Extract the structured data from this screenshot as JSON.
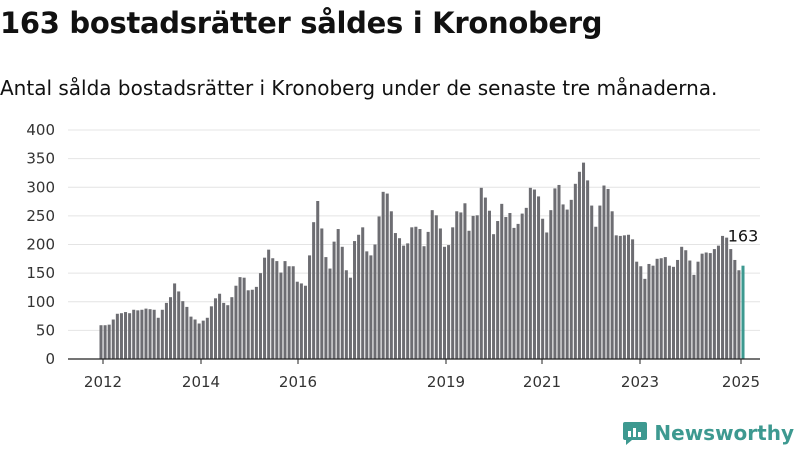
{
  "header": {
    "title": "163 bostadsrätter såldes i Kronoberg",
    "subtitle": "Antal sålda bostadsrätter i Kronoberg under de senaste tre månaderna."
  },
  "brand": {
    "name": "Newsworthy",
    "icon": "newsworthy-logo-icon",
    "color": "#3d9990"
  },
  "chart_data": {
    "type": "bar",
    "title": "163 bostadsrätter såldes i Kronoberg",
    "subtitle": "Antal sålda bostadsrätter i Kronoberg under de senaste tre månaderna.",
    "xlabel": "",
    "ylabel": "",
    "ylim": [
      0,
      400
    ],
    "yticks": [
      0,
      50,
      100,
      150,
      200,
      250,
      300,
      350,
      400
    ],
    "x_tick_labels": [
      "2012",
      "2014",
      "2016",
      "2019",
      "2021",
      "2023",
      "2025"
    ],
    "grid": true,
    "bar_color": "#6d6d72",
    "highlight_color": "#3d9990",
    "last_label": "163",
    "values": [
      59,
      59,
      60,
      69,
      79,
      80,
      82,
      80,
      86,
      85,
      86,
      88,
      87,
      86,
      72,
      86,
      98,
      108,
      132,
      118,
      101,
      91,
      74,
      69,
      62,
      67,
      72,
      92,
      106,
      114,
      98,
      94,
      108,
      128,
      143,
      142,
      120,
      121,
      126,
      150,
      177,
      191,
      176,
      171,
      151,
      171,
      162,
      162,
      135,
      132,
      128,
      181,
      239,
      276,
      228,
      178,
      158,
      205,
      227,
      196,
      155,
      142,
      206,
      217,
      230,
      188,
      181,
      200,
      249,
      292,
      289,
      258,
      220,
      211,
      198,
      202,
      230,
      231,
      227,
      197,
      222,
      260,
      251,
      228,
      196,
      199,
      230,
      258,
      256,
      272,
      224,
      250,
      251,
      299,
      282,
      259,
      218,
      241,
      271,
      248,
      255,
      229,
      236,
      254,
      264,
      299,
      296,
      284,
      245,
      221,
      260,
      298,
      304,
      270,
      261,
      278,
      306,
      327,
      343,
      312,
      268,
      231,
      268,
      303,
      297,
      258,
      216,
      215,
      216,
      217,
      209,
      170,
      162,
      140,
      166,
      163,
      175,
      176,
      178,
      163,
      161,
      173,
      196,
      190,
      172,
      147,
      170,
      184,
      186,
      185,
      192,
      198,
      215,
      212,
      192,
      173,
      155,
      163
    ]
  }
}
